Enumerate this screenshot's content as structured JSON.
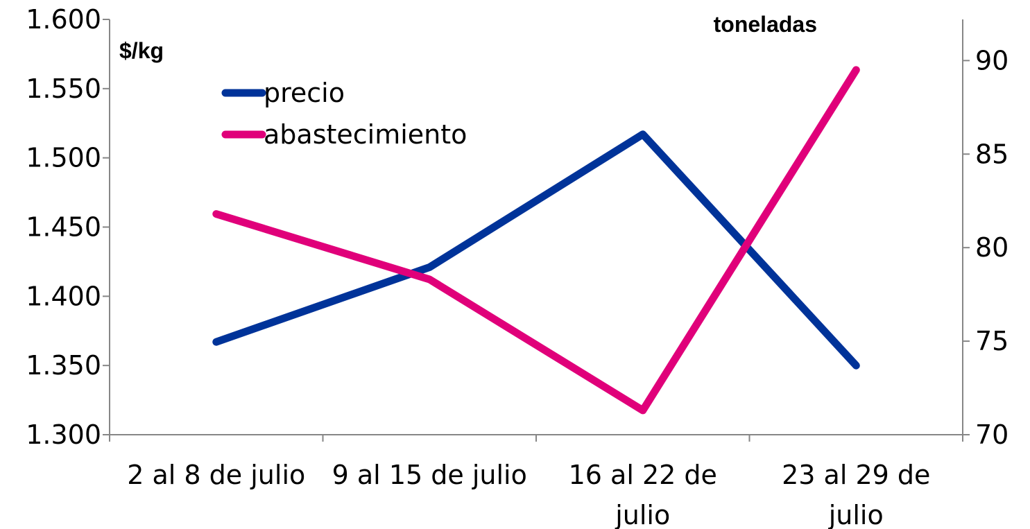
{
  "chart_data": {
    "type": "line",
    "categories": [
      [
        "2 al 8 de julio"
      ],
      [
        "9 al 15 de julio"
      ],
      [
        "16 al 22 de",
        "julio"
      ],
      [
        "23 al 29 de",
        "julio"
      ]
    ],
    "left_axis": {
      "unit_label": "$/kg",
      "ylim": [
        1300,
        1600
      ],
      "ticks": [
        "1.300",
        "1.350",
        "1.400",
        "1.450",
        "1.500",
        "1.550",
        "1.600"
      ]
    },
    "right_axis": {
      "unit_label": "toneladas",
      "ylim": [
        70,
        92.2
      ],
      "ticks": [
        "70",
        "75",
        "80",
        "85",
        "90"
      ]
    },
    "series": [
      {
        "name": "precio",
        "axis": "left",
        "color": "#003399",
        "values": [
          1367,
          1421,
          1517,
          1350
        ]
      },
      {
        "name": "abastecimiento",
        "axis": "right",
        "color": "#e0007a",
        "values": [
          81.8,
          78.3,
          71.3,
          89.5
        ]
      }
    ],
    "legend_position": "top-left"
  }
}
